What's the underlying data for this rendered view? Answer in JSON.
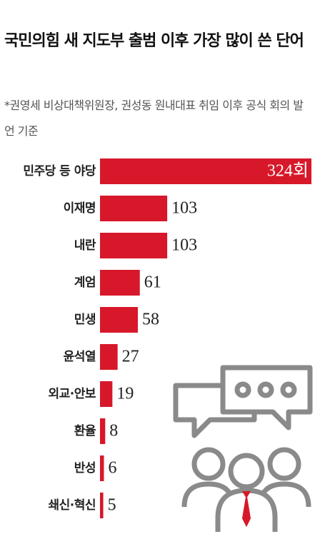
{
  "chart_data": {
    "type": "hbar",
    "title": "국민의힘 새 지도부 출범 이후 가장 많이 쓴 단어",
    "subtitle": "*권영세 비상대책위원장, 권성동 원내대표 취임 이후 공식 회의 발언 기준",
    "categories": [
      "민주당 등 야당",
      "이재명",
      "내란",
      "계엄",
      "민생",
      "윤석열",
      "외교·안보",
      "환율",
      "반성",
      "쇄신·혁신"
    ],
    "values": [
      324,
      103,
      103,
      61,
      58,
      27,
      19,
      8,
      6,
      5
    ],
    "value_labels": [
      "324회",
      "103",
      "103",
      "61",
      "58",
      "27",
      "19",
      "8",
      "6",
      "5"
    ],
    "color": "#d7182a"
  }
}
